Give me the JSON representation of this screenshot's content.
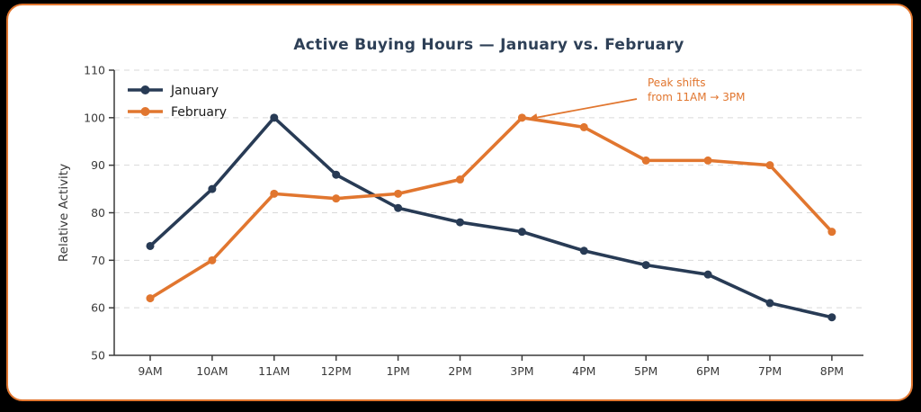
{
  "chart_data": {
    "type": "line",
    "title": "Active Buying Hours — January vs. February",
    "xlabel": "",
    "ylabel": "Relative Activity",
    "categories": [
      "9AM",
      "10AM",
      "11AM",
      "12PM",
      "1PM",
      "2PM",
      "3PM",
      "4PM",
      "5PM",
      "6PM",
      "7PM",
      "8PM"
    ],
    "series": [
      {
        "name": "January",
        "color": "#283b55",
        "values": [
          73,
          85,
          100,
          88,
          81,
          78,
          76,
          72,
          69,
          67,
          61,
          58
        ]
      },
      {
        "name": "February",
        "color": "#e1762f",
        "values": [
          62,
          70,
          84,
          83,
          84,
          87,
          100,
          98,
          91,
          91,
          90,
          76
        ]
      }
    ],
    "ylim": [
      50,
      110
    ],
    "yticks": [
      50,
      60,
      70,
      80,
      90,
      100,
      110
    ],
    "grid": "horizontal-dashed",
    "legend_position": "upper-left",
    "annotation": {
      "lines": [
        "Peak shifts",
        "from 11AM → 3PM"
      ],
      "color": "#e1762f",
      "target": {
        "category": "3PM",
        "value": 100
      }
    }
  },
  "frame": {
    "background": "#000000",
    "card_background": "#ffffff",
    "card_border_color": "#e1762f"
  },
  "styles": {
    "title_color": "#2e4057",
    "axis_color": "#3a3a3a",
    "tick_label_color": "#3a3a3a",
    "grid_color": "#d9d9d9",
    "legend_text_color": "#1a1a1a"
  }
}
